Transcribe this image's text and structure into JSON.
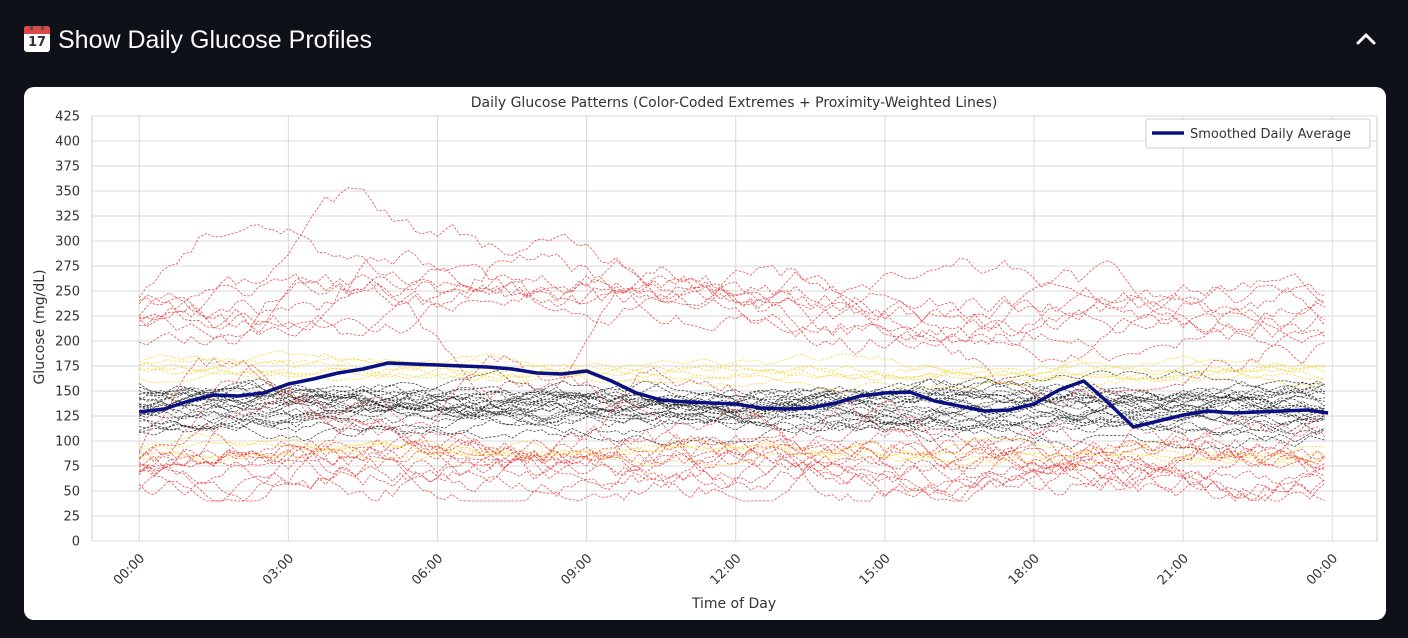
{
  "expander": {
    "title": "Show Daily Glucose Profiles",
    "icon": "calendar-icon",
    "icon_number": "17",
    "expanded": true,
    "chevron_icon": "chevron-up-icon"
  },
  "chart_data": {
    "type": "line",
    "title": "Daily Glucose Patterns (Color-Coded Extremes + Proximity-Weighted Lines)",
    "xlabel": "Time of Day",
    "ylabel": "Glucose (mg/dL)",
    "ylim": [
      0,
      425
    ],
    "yticks": [
      0,
      25,
      50,
      75,
      100,
      125,
      150,
      175,
      200,
      225,
      250,
      275,
      300,
      325,
      350,
      375,
      400,
      425
    ],
    "xlim_hours": [
      -0.95,
      24.9
    ],
    "xticks": [
      "00:00",
      "03:00",
      "06:00",
      "09:00",
      "12:00",
      "15:00",
      "18:00",
      "21:00",
      "00:00"
    ],
    "grid": true,
    "legend_position": "top-right",
    "colors": {
      "average": "#0a1080",
      "high_low_days": "#e63232",
      "near_range_days": "#f5d430",
      "in_range_days": "#222222",
      "grid": "#d9d9d9",
      "text": "#333333"
    },
    "series": [
      {
        "name": "Smoothed Daily Average",
        "x": [
          "00:00",
          "00:30",
          "01:00",
          "01:30",
          "02:00",
          "02:30",
          "03:00",
          "03:30",
          "04:00",
          "04:30",
          "05:00",
          "05:30",
          "06:00",
          "06:30",
          "07:00",
          "07:30",
          "08:00",
          "08:30",
          "09:00",
          "09:30",
          "10:00",
          "10:30",
          "11:00",
          "11:30",
          "12:00",
          "12:30",
          "13:00",
          "13:30",
          "14:00",
          "14:30",
          "15:00",
          "15:30",
          "16:00",
          "16:30",
          "17:00",
          "17:30",
          "18:00",
          "18:30",
          "19:00",
          "19:30",
          "20:00",
          "20:30",
          "21:00",
          "21:30",
          "22:00",
          "22:30",
          "23:00",
          "23:30",
          "23:55"
        ],
        "values": [
          129,
          132,
          140,
          146,
          145,
          148,
          157,
          162,
          168,
          172,
          178,
          177,
          176,
          175,
          174,
          172,
          168,
          167,
          170,
          160,
          148,
          141,
          139,
          138,
          137,
          133,
          132,
          133,
          138,
          145,
          148,
          149,
          140,
          135,
          130,
          131,
          137,
          151,
          160,
          138,
          114,
          120,
          126,
          130,
          128,
          129,
          130,
          131,
          128
        ]
      }
    ],
    "background_series": {
      "description_keys": [
        "high_low_days",
        "near_range_days",
        "in_range_days"
      ],
      "counts": {
        "high_low_days": 22,
        "near_range_days": 10,
        "in_range_days": 24
      }
    }
  }
}
